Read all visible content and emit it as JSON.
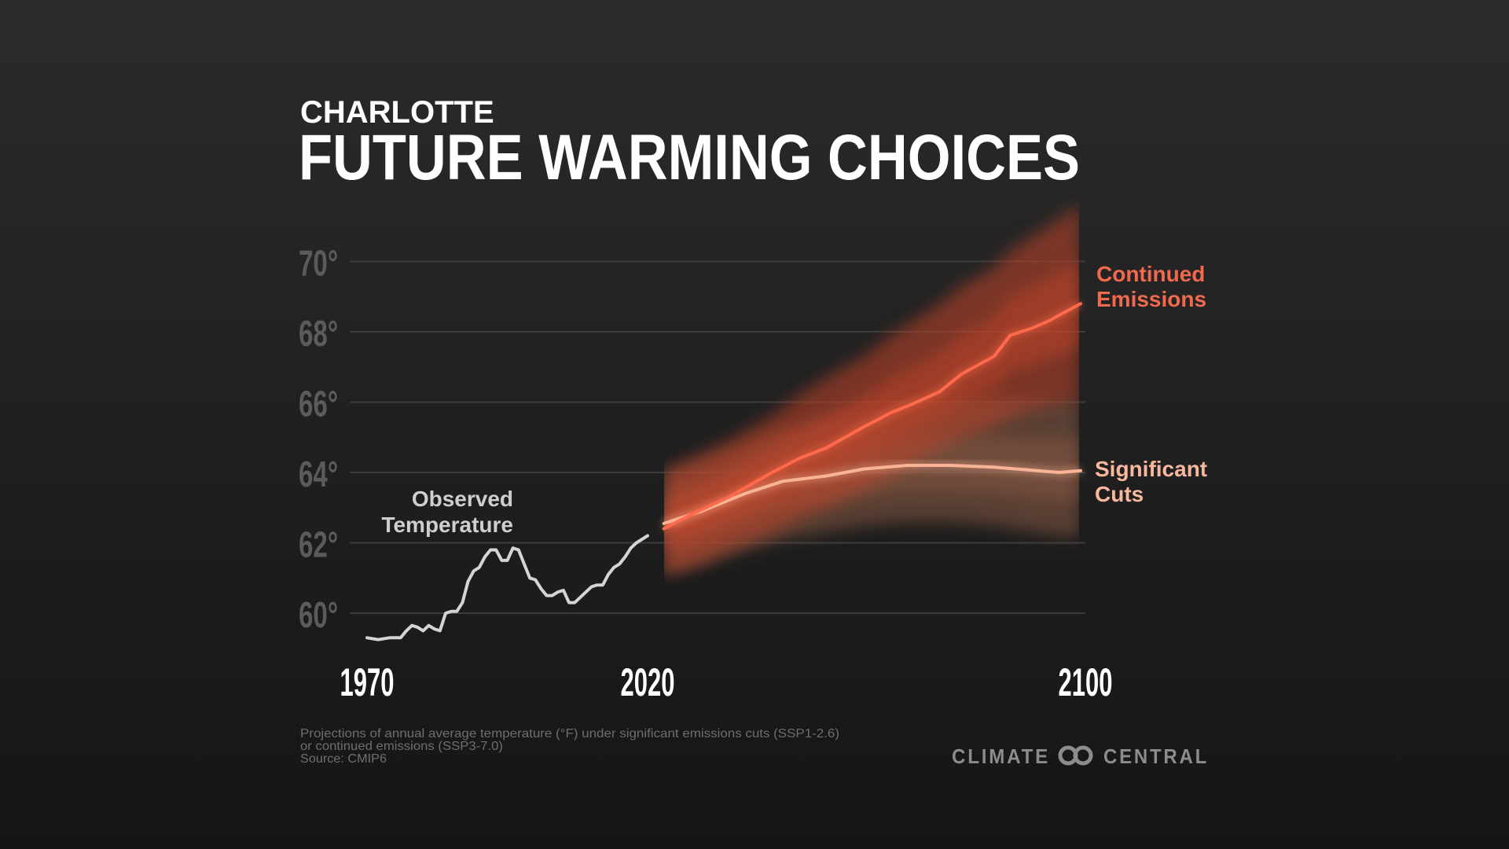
{
  "header": {
    "city": "CHARLOTTE",
    "title": "FUTURE WARMING CHOICES"
  },
  "chart_data": {
    "type": "line",
    "title": "FUTURE WARMING CHOICES",
    "xlabel": "",
    "ylabel": "",
    "ylim": [
      59,
      71.5
    ],
    "xlim": [
      1970,
      2100
    ],
    "grid": true,
    "y_ticks": [
      {
        "value": 60,
        "label": "60°"
      },
      {
        "value": 62,
        "label": "62°"
      },
      {
        "value": 64,
        "label": "64°"
      },
      {
        "value": 66,
        "label": "66°"
      },
      {
        "value": 68,
        "label": "68°"
      },
      {
        "value": 70,
        "label": "70°"
      }
    ],
    "x_ticks": [
      {
        "value": 1970,
        "label": "1970"
      },
      {
        "value": 2020,
        "label": "2020"
      },
      {
        "value": 2100,
        "label": "2100"
      }
    ],
    "series": [
      {
        "name": "Observed Temperature",
        "label_lines": [
          "Observed",
          "Temperature"
        ],
        "color": "#d4d4d4",
        "x": [
          1970,
          1972,
          1974,
          1976,
          1977,
          1978,
          1979,
          1980,
          1981,
          1982,
          1983,
          1984,
          1985,
          1986,
          1987,
          1988,
          1989,
          1990,
          1991,
          1992,
          1993,
          1994,
          1995,
          1996,
          1997,
          1998,
          1999,
          2000,
          2001,
          2002,
          2003,
          2004,
          2005,
          2006,
          2007,
          2008,
          2009,
          2010,
          2011,
          2012,
          2013,
          2014,
          2015,
          2016,
          2017,
          2018,
          2019,
          2020
        ],
        "y": [
          59.3,
          59.25,
          59.3,
          59.3,
          59.5,
          59.65,
          59.6,
          59.5,
          59.65,
          59.55,
          59.5,
          60.0,
          60.05,
          60.05,
          60.3,
          60.9,
          61.2,
          61.3,
          61.6,
          61.8,
          61.8,
          61.5,
          61.5,
          61.85,
          61.8,
          61.4,
          61.0,
          60.95,
          60.7,
          60.5,
          60.5,
          60.6,
          60.65,
          60.3,
          60.3,
          60.45,
          60.6,
          60.75,
          60.8,
          60.8,
          61.1,
          61.3,
          61.4,
          61.6,
          61.85,
          62.0,
          62.1,
          62.2
        ]
      },
      {
        "name": "Continued Emissions",
        "label_lines": [
          "Continued",
          "Emissions"
        ],
        "color": "#ff6a4d",
        "x": [
          2023,
          2028,
          2035,
          2043,
          2048,
          2053,
          2060,
          2065,
          2069,
          2074,
          2078,
          2084,
          2087,
          2091,
          2094,
          2097,
          2100
        ],
        "y": [
          62.4,
          62.8,
          63.3,
          64.0,
          64.4,
          64.7,
          65.3,
          65.7,
          65.95,
          66.3,
          66.8,
          67.3,
          67.9,
          68.1,
          68.3,
          68.55,
          68.8
        ],
        "band_upper": [
          64.0,
          64.4,
          64.9,
          65.6,
          66.2,
          66.7,
          67.3,
          67.9,
          68.3,
          68.8,
          69.3,
          69.8,
          70.3,
          70.7,
          71.0,
          71.3,
          71.6
        ],
        "band_lower": [
          61.1,
          61.3,
          61.8,
          62.3,
          62.7,
          63.0,
          63.5,
          63.9,
          64.3,
          64.7,
          65.0,
          65.3,
          65.6,
          65.8,
          65.9,
          66.0,
          66.1
        ]
      },
      {
        "name": "Significant Cuts",
        "label_lines": [
          "Significant",
          "Cuts"
        ],
        "color": "#f9b395",
        "x": [
          2023,
          2030,
          2038,
          2045,
          2053,
          2060,
          2068,
          2076,
          2084,
          2092,
          2096,
          2100
        ],
        "y": [
          62.55,
          62.9,
          63.4,
          63.75,
          63.9,
          64.1,
          64.2,
          64.2,
          64.15,
          64.05,
          64.0,
          64.05
        ],
        "band_upper": [
          64.0,
          64.3,
          64.8,
          65.2,
          65.5,
          65.8,
          66.0,
          66.1,
          66.1,
          66.1,
          66.1,
          66.1
        ],
        "band_lower": [
          61.1,
          61.4,
          61.8,
          62.1,
          62.3,
          62.5,
          62.6,
          62.6,
          62.5,
          62.3,
          62.2,
          62.2
        ]
      }
    ]
  },
  "footnote": {
    "line1": "Projections of annual average temperature (°F) under significant emissions cuts (SSP1-2.6)",
    "line2": "or continued emissions (SSP3-7.0)",
    "line3": "Source: CMIP6"
  },
  "logo": {
    "left": "CLIMATE",
    "right": "CENTRAL",
    "icon": "linked-rings-icon",
    "color": "#8c8c8c"
  }
}
